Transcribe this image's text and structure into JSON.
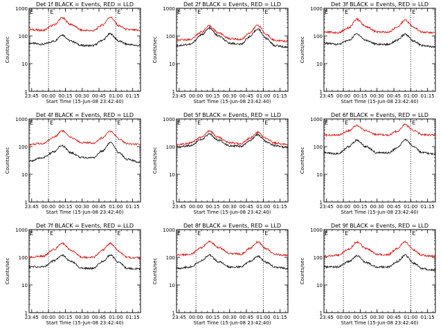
{
  "figure": {
    "xlabel": "Start Time (15-Jun-08 23:42:40)",
    "ylabel": "Counts/sec",
    "x_tick_labels": [
      "23:45",
      "00:00",
      "00:15",
      "00:30",
      "00:45",
      "01:00",
      "01:15"
    ],
    "y_tick_labels": [
      "1",
      "10",
      "100",
      "1000"
    ],
    "marker_labels": [
      "E",
      "E"
    ],
    "colors": {
      "events": "#000000",
      "lld": "#dd0000",
      "axes": "#000000",
      "markers": "#000000"
    }
  },
  "chart_data": [
    {
      "type": "line",
      "title": "Det 1f BLACK = Events, RED = LLD",
      "x_range": [
        "23:42:40",
        "01:22"
      ],
      "ylim": [
        1,
        1000
      ],
      "yscale": "log",
      "x_ticks": [
        "23:45",
        "00:00",
        "00:15",
        "00:30",
        "00:45",
        "01:00",
        "01:15"
      ],
      "markers": [
        {
          "label": "E",
          "x": "00:00"
        },
        {
          "label": "E",
          "x": "01:00"
        }
      ],
      "series": [
        {
          "name": "Events",
          "color": "#000000",
          "x": [
            "23:43",
            "23:55",
            "00:05",
            "00:12",
            "00:20",
            "00:30",
            "00:40",
            "00:48",
            "00:55",
            "01:03",
            "01:10",
            "01:20"
          ],
          "values": [
            55,
            50,
            65,
            110,
            65,
            45,
            45,
            70,
            120,
            65,
            50,
            45
          ]
        },
        {
          "name": "LLD",
          "color": "#dd0000",
          "x": [
            "23:43",
            "23:55",
            "00:05",
            "00:12",
            "00:20",
            "00:30",
            "00:40",
            "00:48",
            "00:55",
            "01:03",
            "01:10",
            "01:20"
          ],
          "values": [
            170,
            160,
            250,
            450,
            260,
            160,
            155,
            250,
            480,
            230,
            170,
            160
          ]
        }
      ]
    },
    {
      "type": "line",
      "title": "Det 2f BLACK = Events, RED = LLD",
      "x_range": [
        "23:42:40",
        "01:22"
      ],
      "ylim": [
        1,
        1000
      ],
      "yscale": "log",
      "x_ticks": [
        "23:45",
        "00:00",
        "00:15",
        "00:30",
        "00:45",
        "01:00",
        "01:15"
      ],
      "markers": [
        {
          "label": "E",
          "x": "00:00"
        },
        {
          "label": "E",
          "x": "01:00"
        }
      ],
      "series": [
        {
          "name": "Events",
          "color": "#000000",
          "x": [
            "23:43",
            "23:55",
            "00:05",
            "00:12",
            "00:20",
            "00:30",
            "00:40",
            "00:48",
            "00:55",
            "01:03",
            "01:10",
            "01:20"
          ],
          "values": [
            45,
            50,
            110,
            190,
            100,
            55,
            50,
            95,
            180,
            80,
            45,
            40
          ]
        },
        {
          "name": "LLD",
          "color": "#dd0000",
          "x": [
            "23:43",
            "23:55",
            "00:05",
            "00:12",
            "00:20",
            "00:30",
            "00:40",
            "00:48",
            "00:55",
            "01:03",
            "01:10",
            "01:20"
          ],
          "values": [
            70,
            75,
            140,
            230,
            130,
            80,
            75,
            130,
            250,
            110,
            70,
            65
          ]
        }
      ]
    },
    {
      "type": "line",
      "title": "Det 3f BLACK = Events, RED = LLD",
      "x_range": [
        "23:42:40",
        "01:22"
      ],
      "ylim": [
        1,
        1000
      ],
      "yscale": "log",
      "x_ticks": [
        "23:45",
        "00:00",
        "00:15",
        "00:30",
        "00:45",
        "01:00",
        "01:15"
      ],
      "markers": [
        {
          "label": "E",
          "x": "00:00"
        },
        {
          "label": "E",
          "x": "01:00"
        }
      ],
      "series": [
        {
          "name": "Events",
          "color": "#000000",
          "x": [
            "23:43",
            "23:55",
            "00:05",
            "00:12",
            "00:20",
            "00:30",
            "00:40",
            "00:48",
            "00:55",
            "01:03",
            "01:10",
            "01:20"
          ],
          "values": [
            55,
            50,
            70,
            120,
            70,
            50,
            50,
            70,
            115,
            65,
            45,
            40
          ]
        },
        {
          "name": "LLD",
          "color": "#dd0000",
          "x": [
            "23:43",
            "23:55",
            "00:05",
            "00:12",
            "00:20",
            "00:30",
            "00:40",
            "00:48",
            "00:55",
            "01:03",
            "01:10",
            "01:20"
          ],
          "values": [
            140,
            130,
            200,
            400,
            220,
            140,
            135,
            210,
            380,
            200,
            140,
            130
          ]
        }
      ]
    },
    {
      "type": "line",
      "title": "Det 4f BLACK = Events, RED = LLD",
      "x_range": [
        "23:42:40",
        "01:22"
      ],
      "ylim": [
        1,
        1000
      ],
      "yscale": "log",
      "x_ticks": [
        "23:45",
        "00:00",
        "00:15",
        "00:30",
        "00:45",
        "01:00",
        "01:15"
      ],
      "markers": [
        {
          "label": "E",
          "x": "00:00"
        },
        {
          "label": "E",
          "x": "01:00"
        }
      ],
      "series": [
        {
          "name": "Events",
          "color": "#000000",
          "x": [
            "23:43",
            "23:55",
            "00:05",
            "00:12",
            "00:20",
            "00:30",
            "00:40",
            "00:48",
            "00:55",
            "01:03",
            "01:10",
            "01:20"
          ],
          "values": [
            30,
            40,
            65,
            110,
            60,
            40,
            40,
            70,
            140,
            60,
            35,
            28
          ]
        },
        {
          "name": "LLD",
          "color": "#dd0000",
          "x": [
            "23:43",
            "23:55",
            "00:05",
            "00:12",
            "00:20",
            "00:30",
            "00:40",
            "00:48",
            "00:55",
            "01:03",
            "01:10",
            "01:20"
          ],
          "values": [
            120,
            130,
            220,
            380,
            210,
            140,
            135,
            210,
            360,
            190,
            130,
            120
          ]
        }
      ]
    },
    {
      "type": "line",
      "title": "Det 5f BLACK = Events, RED = LLD",
      "x_range": [
        "23:42:40",
        "01:22"
      ],
      "ylim": [
        1,
        1000
      ],
      "yscale": "log",
      "x_ticks": [
        "23:45",
        "00:00",
        "00:15",
        "00:30",
        "00:45",
        "01:00",
        "01:15"
      ],
      "markers": [
        {
          "label": "E",
          "x": "00:00"
        },
        {
          "label": "E",
          "x": "01:00"
        }
      ],
      "series": [
        {
          "name": "Events",
          "color": "#000000",
          "x": [
            "23:43",
            "23:55",
            "00:05",
            "00:12",
            "00:20",
            "00:30",
            "00:40",
            "00:48",
            "00:55",
            "01:03",
            "01:10",
            "01:20"
          ],
          "values": [
            95,
            110,
            180,
            280,
            170,
            110,
            100,
            160,
            270,
            150,
            110,
            95
          ]
        },
        {
          "name": "LLD",
          "color": "#dd0000",
          "x": [
            "23:43",
            "23:55",
            "00:05",
            "00:12",
            "00:20",
            "00:30",
            "00:40",
            "00:48",
            "00:55",
            "01:03",
            "01:10",
            "01:20"
          ],
          "values": [
            120,
            135,
            220,
            360,
            215,
            140,
            125,
            200,
            340,
            190,
            135,
            120
          ]
        }
      ]
    },
    {
      "type": "line",
      "title": "Det 6f BLACK = Events, RED = LLD",
      "x_range": [
        "23:42:40",
        "01:22"
      ],
      "ylim": [
        1,
        1000
      ],
      "yscale": "log",
      "x_ticks": [
        "23:45",
        "00:00",
        "00:15",
        "00:30",
        "00:45",
        "01:00",
        "01:15"
      ],
      "markers": [
        {
          "label": "E",
          "x": "00:00"
        },
        {
          "label": "E",
          "x": "01:00"
        }
      ],
      "series": [
        {
          "name": "Events",
          "color": "#000000",
          "x": [
            "23:43",
            "23:55",
            "00:05",
            "00:12",
            "00:20",
            "00:30",
            "00:40",
            "00:48",
            "00:55",
            "01:03",
            "01:10",
            "01:20"
          ],
          "values": [
            60,
            55,
            100,
            170,
            100,
            60,
            60,
            90,
            180,
            100,
            60,
            55
          ]
        },
        {
          "name": "LLD",
          "color": "#dd0000",
          "x": [
            "23:43",
            "23:55",
            "00:05",
            "00:12",
            "00:20",
            "00:30",
            "00:40",
            "00:48",
            "00:55",
            "01:03",
            "01:10",
            "01:20"
          ],
          "values": [
            260,
            260,
            380,
            580,
            380,
            270,
            260,
            360,
            620,
            380,
            270,
            260
          ]
        }
      ]
    },
    {
      "type": "line",
      "title": "Det 7f BLACK = Events, RED = LLD",
      "x_range": [
        "23:42:40",
        "01:22"
      ],
      "ylim": [
        1,
        1000
      ],
      "yscale": "log",
      "x_ticks": [
        "23:45",
        "00:00",
        "00:15",
        "00:30",
        "00:45",
        "01:00",
        "01:15"
      ],
      "markers": [
        {
          "label": "E",
          "x": "00:00"
        },
        {
          "label": "E",
          "x": "01:00"
        }
      ],
      "series": [
        {
          "name": "Events",
          "color": "#000000",
          "x": [
            "23:43",
            "23:55",
            "00:05",
            "00:12",
            "00:20",
            "00:30",
            "00:40",
            "00:48",
            "00:55",
            "01:03",
            "01:10",
            "01:20"
          ],
          "values": [
            45,
            45,
            75,
            120,
            70,
            40,
            40,
            70,
            120,
            65,
            40,
            38
          ]
        },
        {
          "name": "LLD",
          "color": "#dd0000",
          "x": [
            "23:43",
            "23:55",
            "00:05",
            "00:12",
            "00:20",
            "00:30",
            "00:40",
            "00:48",
            "00:55",
            "01:03",
            "01:10",
            "01:20"
          ],
          "values": [
            100,
            110,
            190,
            330,
            180,
            100,
            100,
            180,
            320,
            160,
            100,
            95
          ]
        }
      ]
    },
    {
      "type": "line",
      "title": "Det 8f BLACK = Events, RED = LLD",
      "x_range": [
        "23:42:40",
        "01:22"
      ],
      "ylim": [
        1,
        1000
      ],
      "yscale": "log",
      "x_ticks": [
        "23:45",
        "00:00",
        "00:15",
        "00:30",
        "00:45",
        "01:00",
        "01:15"
      ],
      "markers": [
        {
          "label": "E",
          "x": "00:00"
        },
        {
          "label": "E",
          "x": "01:00"
        }
      ],
      "series": [
        {
          "name": "Events",
          "color": "#000000",
          "x": [
            "23:43",
            "23:55",
            "00:05",
            "00:12",
            "00:20",
            "00:30",
            "00:40",
            "00:48",
            "00:55",
            "01:03",
            "01:10",
            "01:20"
          ],
          "values": [
            40,
            45,
            75,
            120,
            70,
            45,
            45,
            70,
            110,
            65,
            45,
            40
          ]
        },
        {
          "name": "LLD",
          "color": "#dd0000",
          "x": [
            "23:43",
            "23:55",
            "00:05",
            "00:12",
            "00:20",
            "00:30",
            "00:40",
            "00:48",
            "00:55",
            "01:03",
            "01:10",
            "01:20"
          ],
          "values": [
            120,
            130,
            220,
            380,
            230,
            140,
            130,
            210,
            360,
            200,
            130,
            120
          ]
        }
      ]
    },
    {
      "type": "line",
      "title": "Det 9f BLACK = Events, RED = LLD",
      "x_range": [
        "23:42:40",
        "01:22"
      ],
      "ylim": [
        1,
        1000
      ],
      "yscale": "log",
      "x_ticks": [
        "23:45",
        "00:00",
        "00:15",
        "00:30",
        "00:45",
        "01:00",
        "01:15"
      ],
      "markers": [
        {
          "label": "E",
          "x": "00:00"
        },
        {
          "label": "E",
          "x": "01:00"
        }
      ],
      "series": [
        {
          "name": "Events",
          "color": "#000000",
          "x": [
            "23:43",
            "23:55",
            "00:05",
            "00:12",
            "00:20",
            "00:30",
            "00:40",
            "00:48",
            "00:55",
            "01:03",
            "01:10",
            "01:20"
          ],
          "values": [
            45,
            45,
            70,
            115,
            65,
            45,
            45,
            70,
            120,
            60,
            40,
            35
          ]
        },
        {
          "name": "LLD",
          "color": "#dd0000",
          "x": [
            "23:43",
            "23:55",
            "00:05",
            "00:12",
            "00:20",
            "00:30",
            "00:40",
            "00:48",
            "00:55",
            "01:03",
            "01:10",
            "01:20"
          ],
          "values": [
            110,
            120,
            200,
            360,
            210,
            130,
            125,
            210,
            360,
            180,
            120,
            110
          ]
        }
      ]
    }
  ]
}
